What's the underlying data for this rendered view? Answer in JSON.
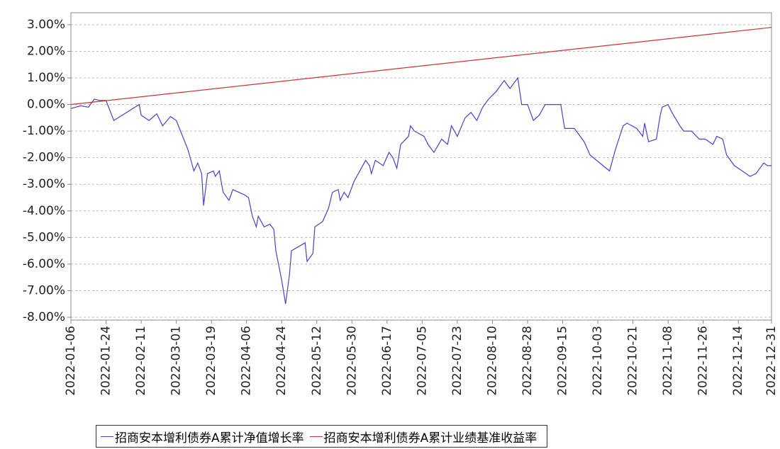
{
  "chart_data": {
    "type": "line",
    "x": [
      "2022-01-06",
      "2022-01-11",
      "2022-01-15",
      "2022-01-18",
      "2022-01-21",
      "2022-01-24",
      "2022-01-28",
      "2022-02-10",
      "2022-02-11",
      "2022-02-15",
      "2022-02-19",
      "2022-02-22",
      "2022-02-26",
      "2022-03-01",
      "2022-03-07",
      "2022-03-10",
      "2022-03-12",
      "2022-03-14",
      "2022-03-15",
      "2022-03-17",
      "2022-03-20",
      "2022-03-21",
      "2022-03-23",
      "2022-03-25",
      "2022-03-28",
      "2022-03-30",
      "2022-04-05",
      "2022-04-07",
      "2022-04-09",
      "2022-04-11",
      "2022-04-12",
      "2022-04-15",
      "2022-04-18",
      "2022-04-20",
      "2022-04-21",
      "2022-04-24",
      "2022-04-26",
      "2022-04-28",
      "2022-04-29",
      "2022-05-06",
      "2022-05-07",
      "2022-05-10",
      "2022-05-11",
      "2022-05-15",
      "2022-05-18",
      "2022-05-20",
      "2022-05-23",
      "2022-05-24",
      "2022-05-26",
      "2022-05-28",
      "2022-05-31",
      "2022-06-06",
      "2022-06-08",
      "2022-06-09",
      "2022-06-11",
      "2022-06-15",
      "2022-06-18",
      "2022-06-20",
      "2022-06-22",
      "2022-06-24",
      "2022-06-28",
      "2022-06-29",
      "2022-07-01",
      "2022-07-06",
      "2022-07-08",
      "2022-07-11",
      "2022-07-15",
      "2022-07-18",
      "2022-07-20",
      "2022-07-23",
      "2022-07-27",
      "2022-07-30",
      "2022-08-02",
      "2022-08-05",
      "2022-08-08",
      "2022-08-12",
      "2022-08-16",
      "2022-08-19",
      "2022-08-23",
      "2022-08-25",
      "2022-08-28",
      "2022-08-31",
      "2022-09-03",
      "2022-09-06",
      "2022-09-14",
      "2022-09-16",
      "2022-09-21",
      "2022-09-26",
      "2022-09-29",
      "2022-10-09",
      "2022-10-12",
      "2022-10-16",
      "2022-10-18",
      "2022-10-23",
      "2022-10-26",
      "2022-10-27",
      "2022-10-29",
      "2022-11-02",
      "2022-11-04",
      "2022-11-05",
      "2022-11-08",
      "2022-11-10",
      "2022-11-14",
      "2022-11-16",
      "2022-11-20",
      "2022-11-24",
      "2022-11-27",
      "2022-12-01",
      "2022-12-03",
      "2022-12-06",
      "2022-12-08",
      "2022-12-12",
      "2022-12-16",
      "2022-12-20",
      "2022-12-23",
      "2022-12-27",
      "2022-12-29",
      "2022-12-31"
    ],
    "series": [
      {
        "name": "招商安本增利债券A累计净值增长率",
        "color": "#4444cc",
        "values": [
          -0.15,
          -0.05,
          -0.1,
          0.2,
          0.15,
          0.15,
          -0.6,
          0.0,
          -0.4,
          -0.6,
          -0.35,
          -0.8,
          -0.45,
          -0.6,
          -1.7,
          -2.5,
          -2.2,
          -2.6,
          -3.8,
          -2.6,
          -2.5,
          -2.7,
          -2.5,
          -3.3,
          -3.6,
          -3.2,
          -3.4,
          -3.5,
          -4.2,
          -4.6,
          -4.2,
          -4.6,
          -4.5,
          -4.7,
          -5.5,
          -6.6,
          -7.5,
          -6.4,
          -5.5,
          -5.2,
          -5.9,
          -5.6,
          -4.6,
          -4.4,
          -3.9,
          -3.3,
          -3.2,
          -3.6,
          -3.3,
          -3.5,
          -2.9,
          -2.1,
          -2.3,
          -2.6,
          -2.1,
          -2.3,
          -1.8,
          -2.0,
          -2.4,
          -1.5,
          -1.2,
          -0.8,
          -1.0,
          -1.2,
          -1.5,
          -1.8,
          -1.3,
          -1.5,
          -0.8,
          -1.2,
          -0.5,
          -0.3,
          -0.6,
          -0.1,
          0.2,
          0.5,
          0.9,
          0.6,
          1.0,
          0.0,
          0.0,
          -0.6,
          -0.4,
          0.0,
          0.0,
          -0.9,
          -0.9,
          -1.4,
          -1.9,
          -2.5,
          -1.7,
          -0.8,
          -0.7,
          -0.9,
          -1.2,
          -0.7,
          -1.4,
          -1.3,
          -0.4,
          -0.1,
          0.0,
          -0.3,
          -0.8,
          -1.0,
          -1.0,
          -1.3,
          -1.3,
          -1.5,
          -1.2,
          -1.3,
          -1.9,
          -2.3,
          -2.5,
          -2.7,
          -2.6,
          -2.2,
          -2.3,
          -2.3
        ]
      },
      {
        "name": "招商安本增利债券A累计业绩基准收益率",
        "color": "#cc3333",
        "x": [
          "2022-01-06",
          "2022-12-31"
        ],
        "values": [
          0.0,
          2.9
        ]
      }
    ],
    "xlim": [
      "2022-01-06",
      "2022-12-31"
    ],
    "xticks": [
      "2022-01-06",
      "2022-01-24",
      "2022-02-11",
      "2022-03-01",
      "2022-03-19",
      "2022-04-06",
      "2022-04-24",
      "2022-05-12",
      "2022-05-30",
      "2022-06-17",
      "2022-07-05",
      "2022-07-23",
      "2022-08-10",
      "2022-08-28",
      "2022-09-15",
      "2022-10-03",
      "2022-10-21",
      "2022-11-08",
      "2022-11-26",
      "2022-12-14",
      "2022-12-31"
    ],
    "ylim": [
      -8,
      3.45
    ],
    "yticks": [
      {
        "value": 3,
        "label": "3.00%"
      },
      {
        "value": 2,
        "label": "2.00%"
      },
      {
        "value": 1,
        "label": "1.00%"
      },
      {
        "value": 0,
        "label": "0.00%"
      },
      {
        "value": -1,
        "label": "-1.00%"
      },
      {
        "value": -2,
        "label": "-2.00%"
      },
      {
        "value": -3,
        "label": "-3.00%"
      },
      {
        "value": -4,
        "label": "-4.00%"
      },
      {
        "value": -5,
        "label": "-5.00%"
      },
      {
        "value": -6,
        "label": "-6.00%"
      },
      {
        "value": -7,
        "label": "-7.00%"
      },
      {
        "value": -8,
        "label": "-8.00%"
      }
    ],
    "grid": true
  }
}
